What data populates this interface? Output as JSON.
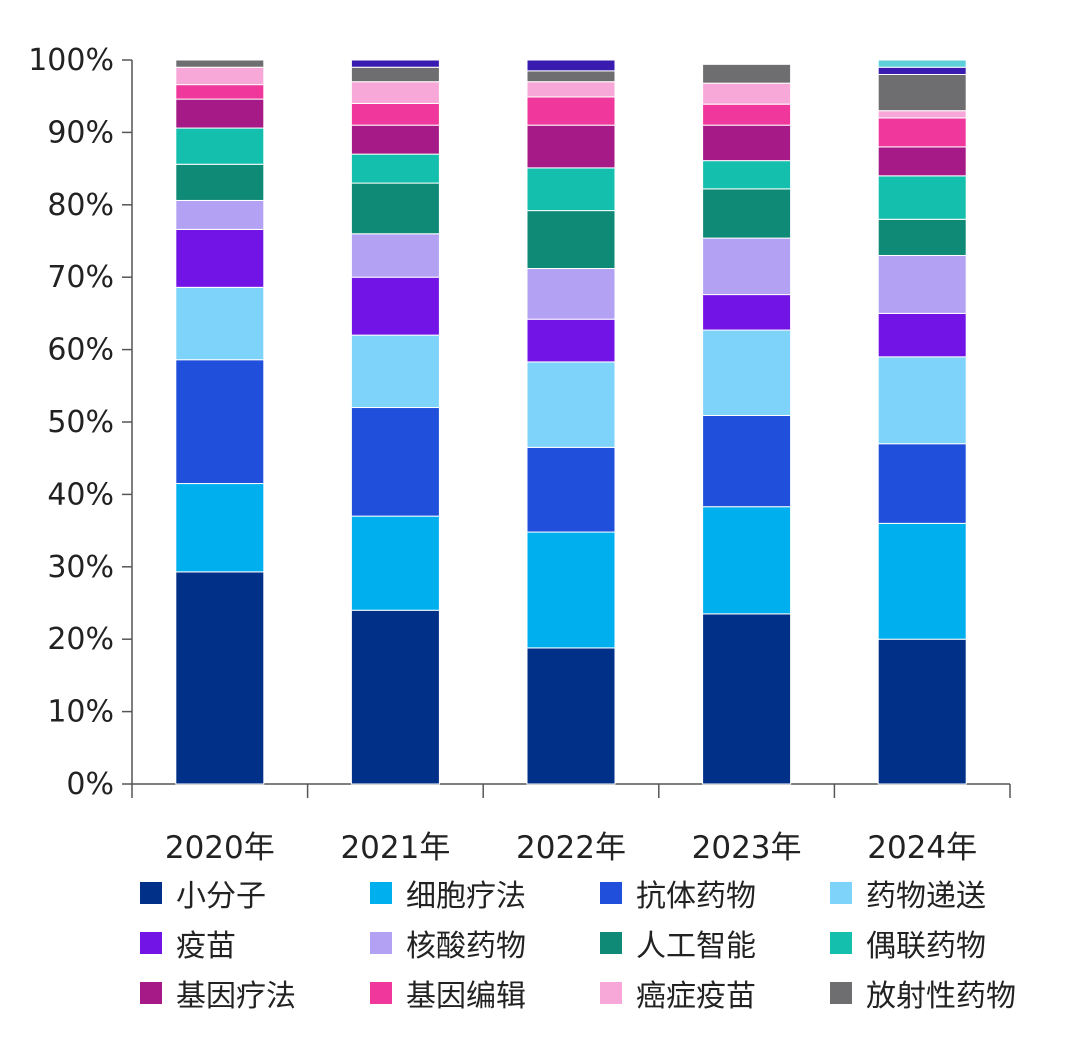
{
  "chart_data": {
    "type": "bar",
    "stacked": true,
    "title": "",
    "xlabel": "",
    "ylabel": "",
    "ylim": [
      0,
      100
    ],
    "y_ticks": [
      "0%",
      "10%",
      "20%",
      "30%",
      "40%",
      "50%",
      "60%",
      "70%",
      "80%",
      "90%",
      "100%"
    ],
    "categories": [
      "2020年",
      "2021年",
      "2022年",
      "2023年",
      "2024年"
    ],
    "legend_position": "bottom",
    "grid": false,
    "series": [
      {
        "name": "小分子",
        "color": "#003087",
        "values": [
          29.3,
          24.0,
          18.8,
          23.5,
          20.0
        ]
      },
      {
        "name": "细胞疗法",
        "color": "#00B0EE",
        "values": [
          12.2,
          13.0,
          16.0,
          14.8,
          16.0
        ]
      },
      {
        "name": "抗体药物",
        "color": "#1F4FDB",
        "values": [
          17.1,
          15.0,
          11.7,
          12.6,
          11.0
        ]
      },
      {
        "name": "药物递送",
        "color": "#7DD3F9",
        "values": [
          10.0,
          10.0,
          11.8,
          11.8,
          12.0
        ]
      },
      {
        "name": "疫苗",
        "color": "#7214E6",
        "values": [
          8.0,
          8.0,
          5.9,
          4.9,
          6.0
        ]
      },
      {
        "name": "核酸药物",
        "color": "#B3A2F4",
        "values": [
          4.0,
          6.0,
          7.0,
          7.8,
          8.0
        ]
      },
      {
        "name": "人工智能",
        "color": "#0F8A76",
        "values": [
          5.0,
          7.0,
          8.0,
          6.8,
          5.0
        ]
      },
      {
        "name": "偶联药物",
        "color": "#14BFAE",
        "values": [
          5.0,
          4.0,
          5.9,
          3.9,
          6.0
        ]
      },
      {
        "name": "基因疗法",
        "color": "#A51A86",
        "values": [
          4.0,
          4.0,
          5.9,
          4.9,
          4.0
        ]
      },
      {
        "name": "基因编辑",
        "color": "#F0379C",
        "values": [
          2.0,
          3.0,
          3.9,
          2.9,
          4.0
        ]
      },
      {
        "name": "癌症疫苗",
        "color": "#F7A8D8",
        "values": [
          2.4,
          3.0,
          2.1,
          2.9,
          1.0
        ]
      },
      {
        "name": "放射性药物",
        "color": "#6E6E70",
        "values": [
          1.0,
          2.0,
          1.5,
          2.6,
          5.0
        ]
      },
      {
        "name": "",
        "color": "#3A1BB0",
        "values": [
          0,
          1.0,
          1.5,
          0,
          1.0
        ]
      },
      {
        "name": "",
        "color": "#5FCFD9",
        "values": [
          0,
          0,
          0,
          0,
          1.0
        ]
      }
    ]
  }
}
